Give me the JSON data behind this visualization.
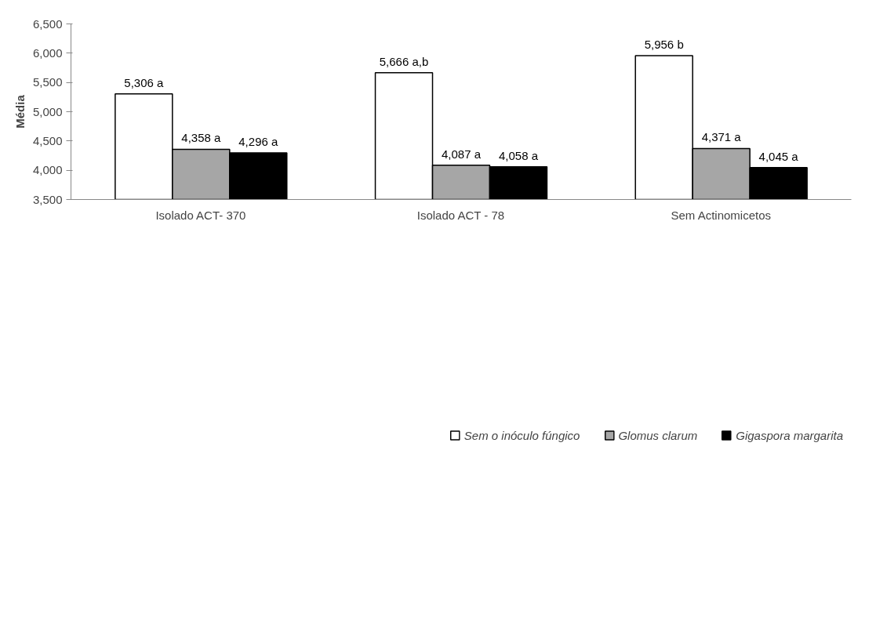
{
  "chart_data": {
    "type": "bar",
    "ylabel": "Média",
    "categories": [
      "Isolado ACT- 370",
      "Isolado ACT - 78",
      "Sem Actinomicetos"
    ],
    "series": [
      {
        "name": "Sem o inóculo fúngico",
        "color": "#ffffff",
        "values": [
          5306,
          5666,
          5956
        ],
        "value_labels": [
          "5,306 a",
          "5,666 a,b",
          "5,956 b"
        ]
      },
      {
        "name": "Glomus clarum",
        "color": "#a6a6a6",
        "values": [
          4358,
          4087,
          4371
        ],
        "value_labels": [
          "4,358 a",
          "4,087 a",
          "4,371 a"
        ]
      },
      {
        "name": "Gigaspora margarita",
        "color": "#000000",
        "values": [
          4296,
          4058,
          4045
        ],
        "value_labels": [
          "4,296 a",
          "4,058 a",
          "4,045 a"
        ]
      }
    ],
    "ylim": [
      3500,
      6500
    ],
    "yticks": [
      {
        "value": 3500,
        "label": "3,500"
      },
      {
        "value": 4000,
        "label": "4,000"
      },
      {
        "value": 4500,
        "label": "4,500"
      },
      {
        "value": 5000,
        "label": "5,000"
      },
      {
        "value": 5500,
        "label": "5,500"
      },
      {
        "value": 6000,
        "label": "6,000"
      },
      {
        "value": 6500,
        "label": "6,500"
      }
    ],
    "grid": false,
    "legend": "bottom"
  }
}
